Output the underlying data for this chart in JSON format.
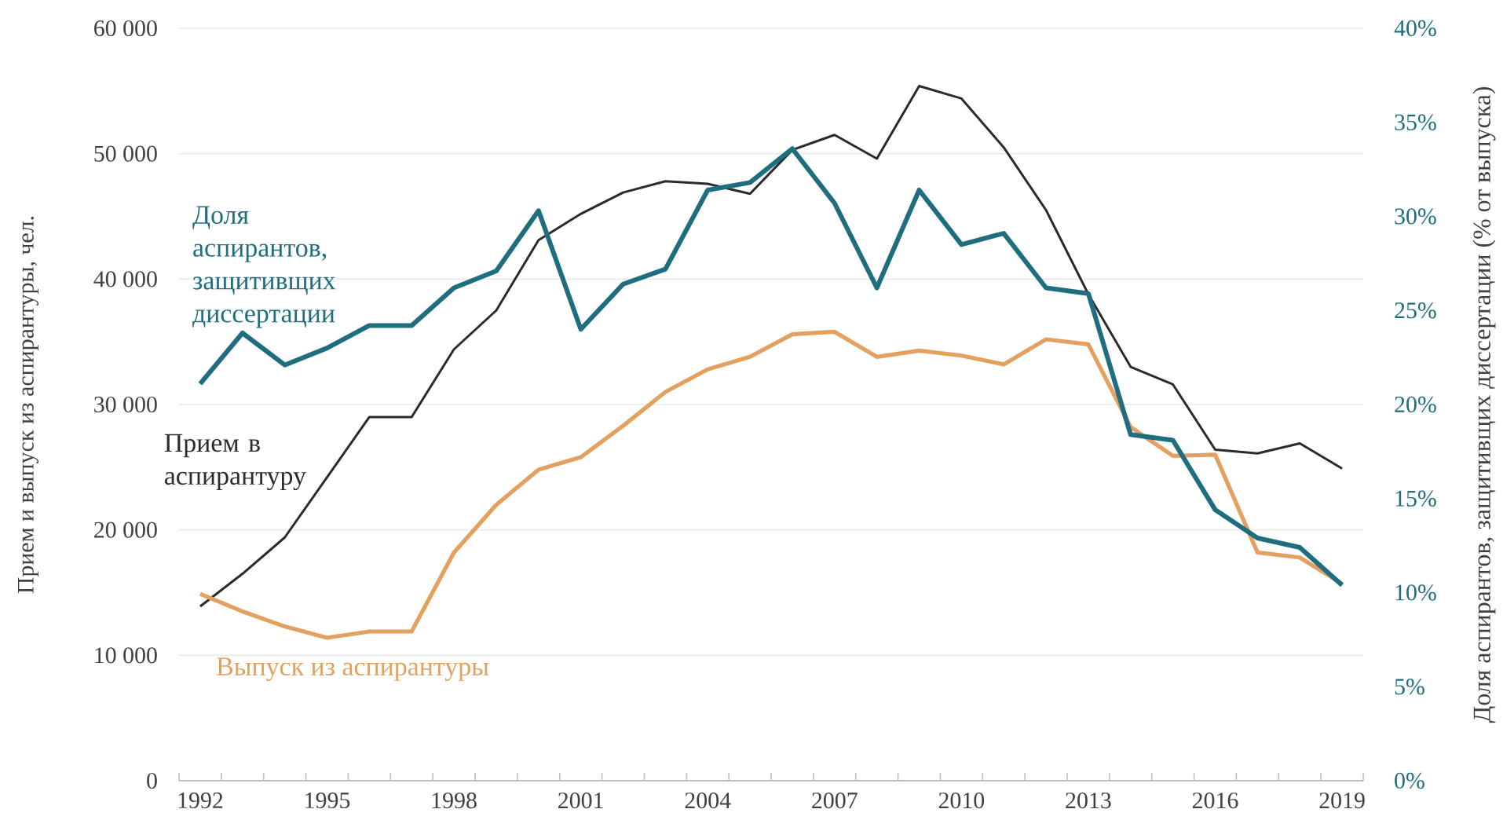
{
  "chart_data": {
    "type": "line",
    "ylabel": "Прием и выпуск из аспирантуры, чел.",
    "y2label": "Доля аспирантов, защитивщих диссертации (% от выпуска)",
    "categories": [
      "1992",
      null,
      null,
      "1995",
      null,
      null,
      "1998",
      null,
      null,
      "2001",
      null,
      null,
      "2004",
      null,
      null,
      "2007",
      null,
      null,
      "2010",
      null,
      null,
      "2013",
      null,
      null,
      "2016",
      null,
      null,
      "2019"
    ],
    "series": [
      {
        "name": "Прием в аспирантуру",
        "color": "#2b2b2b",
        "values": [
          13900,
          16500,
          19400,
          24200,
          29000,
          29000,
          34400,
          37500,
          43100,
          45200,
          46900,
          47800,
          47600,
          46800,
          50300,
          51500,
          49600,
          55400,
          54400,
          50500,
          45500,
          38800,
          33000,
          31600,
          26400,
          26100,
          26900,
          24900
        ]
      },
      {
        "name": "Выпуск из аспирантуры",
        "color": "#e3a05e",
        "values": [
          14900,
          13500,
          12300,
          11400,
          11900,
          11900,
          18200,
          22000,
          24800,
          25800,
          28300,
          31000,
          32800,
          33800,
          35600,
          35800,
          33800,
          34300,
          33900,
          33200,
          35200,
          34800,
          28200,
          25900,
          26000,
          18200,
          17800,
          15700
        ]
      },
      {
        "name": "Доля аспирантов, защитивщих диссертации",
        "color": "#1e6e80",
        "axis": "y2",
        "values": [
          21.1,
          23.8,
          22.1,
          23.0,
          24.2,
          24.2,
          26.2,
          27.1,
          30.3,
          24.0,
          26.4,
          27.2,
          31.4,
          31.8,
          33.6,
          30.7,
          26.2,
          31.4,
          28.5,
          29.1,
          26.2,
          25.9,
          18.4,
          18.1,
          14.4,
          12.9,
          12.4,
          10.4
        ]
      }
    ],
    "ylim": [
      0,
      60000
    ],
    "yticks": [
      0,
      {
        "value": 10000,
        "label": "10 000"
      },
      {
        "value": 20000,
        "label": "20 000"
      },
      {
        "value": 30000,
        "label": "30 000"
      },
      {
        "value": 40000,
        "label": "40 000"
      },
      {
        "value": 50000,
        "label": "50 000"
      },
      {
        "value": 60000,
        "label": "60 000"
      }
    ],
    "y2lim": [
      0,
      40
    ],
    "y2ticks": [
      {
        "value": 0,
        "label": "0%"
      },
      {
        "value": 5,
        "label": "5%"
      },
      {
        "value": 10,
        "label": "10%"
      },
      {
        "value": 15,
        "label": "15%"
      },
      {
        "value": 20,
        "label": "20%"
      },
      {
        "value": 25,
        "label": "25%"
      },
      {
        "value": 30,
        "label": "30%"
      },
      {
        "value": 35,
        "label": "35%"
      },
      {
        "value": 40,
        "label": "40%"
      }
    ],
    "grid": "y",
    "legend": false,
    "marker": "none",
    "line_style": "solid"
  }
}
